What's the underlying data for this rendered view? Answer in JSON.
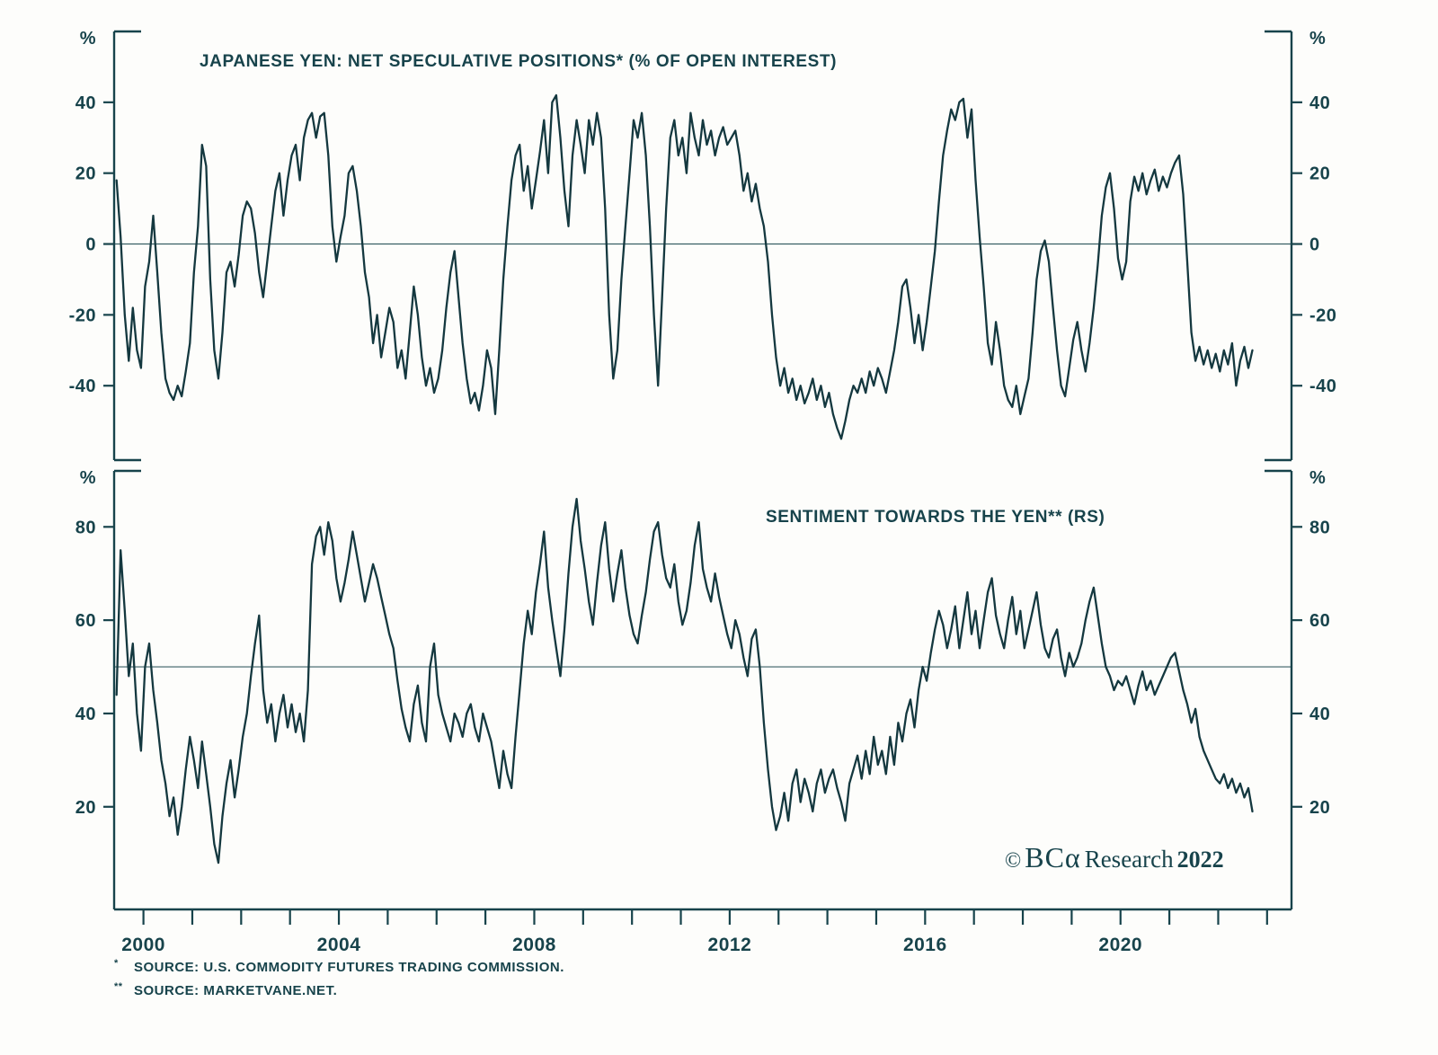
{
  "page": {
    "background": "#fdfdfb",
    "ink": "#17434b",
    "series_color": "#14383f"
  },
  "copyright": {
    "symbol": "©",
    "brand": "BCα",
    "name": "Research",
    "year": "2022"
  },
  "footnotes": [
    {
      "marker": "*",
      "text": "SOURCE: U.S. COMMODITY FUTURES TRADING COMMISSION."
    },
    {
      "marker": "**",
      "text": "SOURCE: MARKETVANE.NET."
    }
  ],
  "chart_data": [
    {
      "type": "line",
      "title": "JAPANESE YEN: NET SPECULATIVE POSITIONS* (% OF OPEN INTEREST)",
      "xlabel": "",
      "ylabel": "%",
      "ylim": [
        -61,
        60
      ],
      "yticks": [
        40,
        20,
        0,
        -20,
        -40
      ],
      "ref_line": 0,
      "grid": false,
      "legend": "none",
      "xlim": [
        1999.4,
        2023.5
      ],
      "x_tick_labels": [
        2000,
        2004,
        2008,
        2012,
        2016,
        2020
      ],
      "x_start": 1999.45,
      "x_step": 0.083333,
      "series": [
        {
          "name": "Yen net speculative positions (% of open interest)",
          "values": [
            18,
            2,
            -20,
            -33,
            -18,
            -30,
            -35,
            -12,
            -5,
            8,
            -8,
            -25,
            -38,
            -42,
            -44,
            -40,
            -43,
            -36,
            -28,
            -8,
            5,
            28,
            22,
            -10,
            -30,
            -38,
            -25,
            -8,
            -5,
            -12,
            -3,
            8,
            12,
            10,
            3,
            -8,
            -15,
            -5,
            5,
            15,
            20,
            8,
            18,
            25,
            28,
            18,
            30,
            35,
            37,
            30,
            36,
            37,
            25,
            5,
            -5,
            2,
            8,
            20,
            22,
            15,
            5,
            -8,
            -15,
            -28,
            -20,
            -32,
            -25,
            -18,
            -22,
            -35,
            -30,
            -38,
            -25,
            -12,
            -20,
            -32,
            -40,
            -35,
            -42,
            -38,
            -30,
            -18,
            -8,
            -2,
            -15,
            -28,
            -38,
            -45,
            -42,
            -47,
            -40,
            -30,
            -35,
            -48,
            -30,
            -10,
            5,
            18,
            25,
            28,
            15,
            22,
            10,
            18,
            26,
            35,
            20,
            40,
            42,
            30,
            15,
            5,
            25,
            35,
            28,
            20,
            35,
            28,
            37,
            30,
            10,
            -20,
            -38,
            -30,
            -10,
            5,
            20,
            35,
            30,
            37,
            25,
            5,
            -20,
            -40,
            -15,
            10,
            30,
            35,
            25,
            30,
            20,
            37,
            30,
            25,
            35,
            28,
            32,
            25,
            30,
            33,
            28,
            30,
            32,
            25,
            15,
            20,
            12,
            17,
            10,
            5,
            -5,
            -20,
            -32,
            -40,
            -35,
            -42,
            -38,
            -44,
            -40,
            -45,
            -42,
            -38,
            -44,
            -40,
            -46,
            -42,
            -48,
            -52,
            -55,
            -50,
            -44,
            -40,
            -42,
            -38,
            -42,
            -36,
            -40,
            -35,
            -38,
            -42,
            -36,
            -30,
            -22,
            -12,
            -10,
            -18,
            -28,
            -20,
            -30,
            -22,
            -12,
            -2,
            12,
            25,
            32,
            38,
            35,
            40,
            41,
            30,
            38,
            18,
            2,
            -12,
            -28,
            -34,
            -22,
            -30,
            -40,
            -44,
            -46,
            -40,
            -48,
            -43,
            -38,
            -25,
            -10,
            -2,
            1,
            -5,
            -18,
            -30,
            -40,
            -43,
            -35,
            -27,
            -22,
            -30,
            -36,
            -28,
            -18,
            -6,
            8,
            16,
            20,
            10,
            -4,
            -10,
            -5,
            12,
            19,
            15,
            20,
            14,
            18,
            21,
            15,
            19,
            16,
            20,
            23,
            25,
            14,
            -5,
            -25,
            -33,
            -29,
            -34,
            -30,
            -35,
            -31,
            -36,
            -30,
            -34,
            -28,
            -40,
            -33,
            -29,
            -35,
            -30
          ]
        }
      ]
    },
    {
      "type": "line",
      "title": "SENTIMENT TOWARDS THE YEN** (RS)",
      "xlabel": "",
      "ylabel": "%",
      "ylim": [
        -2,
        92
      ],
      "yticks": [
        80,
        60,
        40,
        20
      ],
      "ref_line": 50,
      "grid": false,
      "legend": "none",
      "xlim": [
        1999.4,
        2023.5
      ],
      "x_tick_labels": [
        2000,
        2004,
        2008,
        2012,
        2016,
        2020
      ],
      "x_start": 1999.45,
      "x_step": 0.083333,
      "series": [
        {
          "name": "Sentiment towards the yen (RS)",
          "values": [
            44,
            75,
            62,
            48,
            55,
            40,
            32,
            50,
            55,
            45,
            38,
            30,
            25,
            18,
            22,
            14,
            20,
            28,
            35,
            30,
            24,
            34,
            27,
            20,
            12,
            8,
            18,
            25,
            30,
            22,
            28,
            35,
            40,
            48,
            55,
            61,
            45,
            38,
            42,
            34,
            40,
            44,
            37,
            42,
            36,
            40,
            34,
            45,
            72,
            78,
            80,
            74,
            81,
            77,
            69,
            64,
            68,
            73,
            79,
            74,
            69,
            64,
            68,
            72,
            69,
            65,
            61,
            57,
            54,
            47,
            41,
            37,
            34,
            42,
            46,
            38,
            34,
            50,
            55,
            44,
            40,
            37,
            34,
            40,
            38,
            35,
            40,
            42,
            37,
            34,
            40,
            37,
            34,
            29,
            24,
            32,
            27,
            24,
            35,
            45,
            55,
            62,
            57,
            66,
            72,
            79,
            67,
            60,
            54,
            48,
            58,
            70,
            80,
            86,
            77,
            71,
            64,
            59,
            68,
            76,
            81,
            71,
            64,
            70,
            75,
            67,
            61,
            57,
            55,
            61,
            66,
            73,
            79,
            81,
            74,
            69,
            67,
            72,
            64,
            59,
            62,
            68,
            76,
            81,
            71,
            67,
            64,
            70,
            65,
            61,
            57,
            54,
            60,
            57,
            52,
            48,
            56,
            58,
            50,
            38,
            28,
            20,
            15,
            18,
            23,
            17,
            25,
            28,
            21,
            26,
            23,
            19,
            25,
            28,
            23,
            26,
            28,
            24,
            21,
            17,
            25,
            28,
            31,
            26,
            32,
            27,
            35,
            29,
            32,
            27,
            35,
            29,
            38,
            34,
            40,
            43,
            37,
            45,
            50,
            47,
            53,
            58,
            62,
            59,
            54,
            58,
            63,
            54,
            60,
            66,
            57,
            62,
            54,
            60,
            66,
            69,
            61,
            57,
            54,
            60,
            65,
            57,
            62,
            54,
            58,
            62,
            66,
            59,
            54,
            52,
            56,
            58,
            52,
            48,
            53,
            50,
            52,
            55,
            60,
            64,
            67,
            61,
            55,
            50,
            48,
            45,
            47,
            46,
            48,
            45,
            42,
            46,
            49,
            45,
            47,
            44,
            46,
            48,
            50,
            52,
            53,
            49,
            45,
            42,
            38,
            41,
            35,
            32,
            30,
            28,
            26,
            25,
            27,
            24,
            26,
            23,
            25,
            22,
            24,
            19
          ]
        }
      ]
    }
  ]
}
